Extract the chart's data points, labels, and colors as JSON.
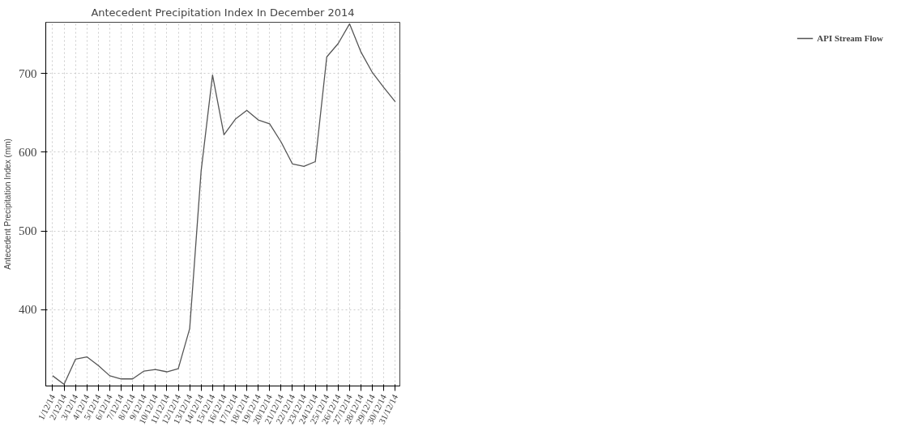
{
  "chart_data": {
    "type": "line",
    "title": "Antecedent Precipitation Index In December 2014",
    "ylabel": "Antecedent Precipitation Index (mm)",
    "categories": [
      "1/12/14",
      "2/12/14",
      "3/12/14",
      "4/12/14",
      "5/12/14",
      "6/12/14",
      "7/12/14",
      "8/12/14",
      "9/12/14",
      "10/12/14",
      "11/12/14",
      "12/12/14",
      "13/12/14",
      "14/12/14",
      "15/12/14",
      "16/12/14",
      "17/12/14",
      "18/12/14",
      "19/12/14",
      "20/12/14",
      "21/12/14",
      "22/12/14",
      "23/12/14",
      "24/12/14",
      "25/12/14",
      "26/12/14",
      "27/12/14",
      "28/12/14",
      "29/12/14",
      "30/12/14",
      "31/12/14"
    ],
    "series": [
      {
        "name": "API Stream Flow",
        "color": "#555555",
        "values": [
          316,
          305,
          337,
          340,
          329,
          316,
          312,
          312,
          322,
          324,
          321,
          325,
          376,
          576,
          698,
          622,
          642,
          653,
          641,
          636,
          613,
          585,
          582,
          588,
          721,
          738,
          763,
          727,
          701,
          682,
          664
        ]
      }
    ],
    "ylim": [
      303,
      765
    ],
    "yticks": [
      400,
      500,
      600,
      700
    ],
    "grid": true,
    "legend": "right",
    "marker": "none",
    "line_style": "solid"
  }
}
